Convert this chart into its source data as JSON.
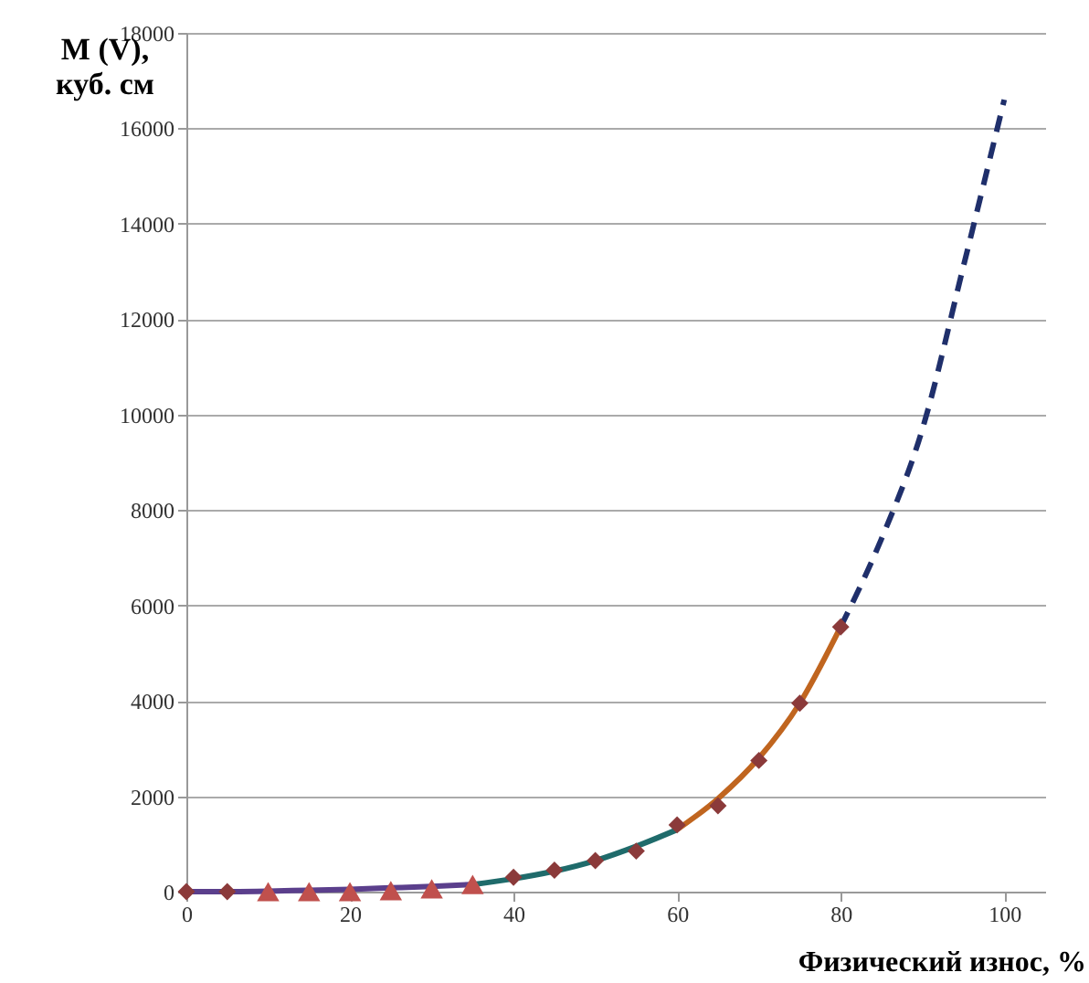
{
  "chart_data": {
    "type": "line",
    "xlabel": "Физический износ, %",
    "ylabel": "M (V),\nкуб. см",
    "xlim": [
      0,
      105
    ],
    "xticks": [
      0,
      20,
      40,
      60,
      80,
      100
    ],
    "ylim": [
      0,
      18000
    ],
    "yticks": [
      0,
      2000,
      4000,
      6000,
      8000,
      10000,
      12000,
      14000,
      16000,
      18000
    ],
    "grid": "y",
    "series": [
      {
        "color": "#5b3f8c",
        "line_style": "solid",
        "marker": "none",
        "x": [
          0,
          5,
          10,
          15,
          20,
          25,
          30,
          35
        ],
        "values": [
          0,
          0,
          10,
          30,
          50,
          80,
          110,
          150
        ]
      },
      {
        "color": "#1f6b6b",
        "line_style": "solid",
        "marker": "none",
        "x": [
          35,
          40,
          45,
          50,
          55,
          60
        ],
        "values": [
          150,
          270,
          430,
          650,
          950,
          1300
        ]
      },
      {
        "color": "#c0651f",
        "line_style": "solid",
        "marker": "none",
        "x": [
          60,
          65,
          70,
          75,
          80
        ],
        "values": [
          1300,
          1950,
          2800,
          3950,
          5550
        ]
      },
      {
        "color": "#1f2f6b",
        "line_style": "dashed",
        "marker": "none",
        "x": [
          80,
          85,
          90,
          95,
          100
        ],
        "values": [
          5550,
          7400,
          9700,
          13100,
          16600
        ]
      },
      {
        "type": "scatter",
        "color": "#8b3a3a",
        "marker": "diamond",
        "x": [
          0,
          5,
          40,
          45,
          50,
          55,
          60,
          65,
          70,
          75,
          80
        ],
        "values": [
          0,
          0,
          300,
          450,
          650,
          850,
          1400,
          1800,
          2750,
          3950,
          5550
        ]
      },
      {
        "type": "scatter",
        "color": "#c0504d",
        "marker": "triangle",
        "x": [
          10,
          15,
          20,
          25,
          30,
          35
        ],
        "values": [
          0,
          0,
          0,
          20,
          60,
          150
        ]
      }
    ]
  }
}
